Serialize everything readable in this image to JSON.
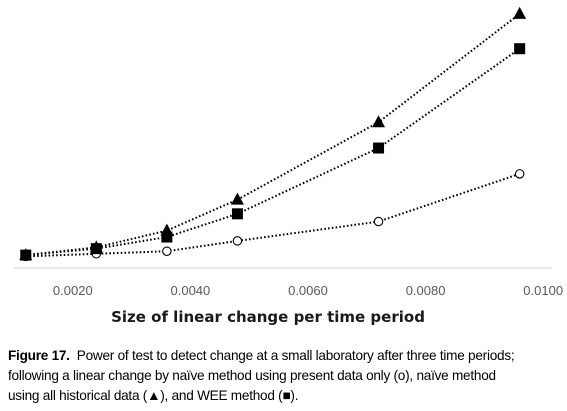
{
  "chart_data": {
    "type": "line",
    "xlabel": "Size of linear change per time period",
    "ylabel": "",
    "title": "",
    "x_ticks": [
      "0.0020",
      "0.0040",
      "0.0060",
      "0.0080",
      "0.0100"
    ],
    "x_tick_values": [
      0.002,
      0.004,
      0.006,
      0.008,
      0.01
    ],
    "xlim": [
      0.001,
      0.01015
    ],
    "ylim": [
      0.0,
      1.0
    ],
    "grid": false,
    "legend": "none",
    "series": [
      {
        "marker": "circle-open",
        "color": "#000000",
        "x": [
          0.0012,
          0.0024,
          0.0036,
          0.0048,
          0.0072,
          0.0096
        ],
        "y": [
          0.045,
          0.055,
          0.065,
          0.105,
          0.18,
          0.365
        ]
      },
      {
        "marker": "square",
        "color": "#000000",
        "x": [
          0.0012,
          0.0024,
          0.0036,
          0.0048,
          0.0072,
          0.0096
        ],
        "y": [
          0.05,
          0.075,
          0.12,
          0.21,
          0.465,
          0.85
        ]
      },
      {
        "marker": "triangle",
        "color": "#000000",
        "x": [
          0.0012,
          0.0024,
          0.0036,
          0.0048,
          0.0072,
          0.0096
        ],
        "y": [
          0.05,
          0.08,
          0.145,
          0.265,
          0.565,
          0.985
        ]
      }
    ]
  },
  "caption": {
    "label": "Figure 17.",
    "line1": "Power of test to detect change at a small laboratory after three time periods;",
    "line2": "following a linear change by naïve method using present data only (o), naïve method",
    "line3": "using all historical data (▲), and WEE method (■)."
  }
}
